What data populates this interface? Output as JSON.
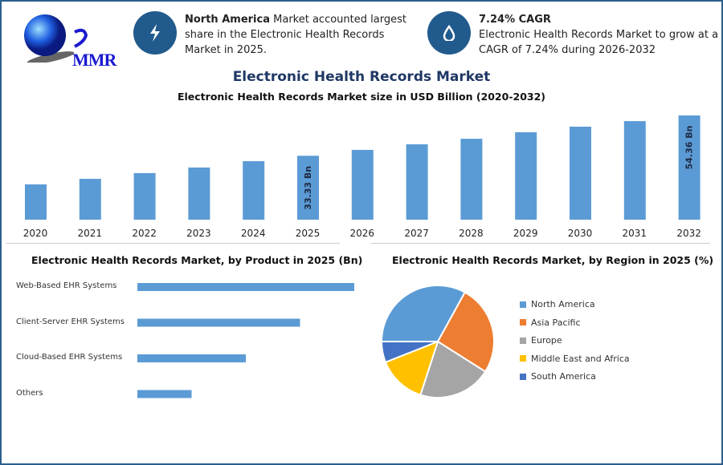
{
  "logo": {
    "text": "MMR"
  },
  "info_boxes": [
    {
      "icon": "lightning-icon",
      "bold": "North America",
      "text": " Market accounted largest share in the Electronic Health Records Market in 2025."
    },
    {
      "icon": "drop-icon",
      "bold": "7.24% CAGR",
      "text": "Electronic Health Records Market to grow at a CAGR of 7.24% during 2026-2032"
    }
  ],
  "main_title": "Electronic Health Records Market",
  "colors": {
    "bar": "#5b9bd5",
    "title": "#1f3864",
    "badge": "#215a8c"
  },
  "chart_data": [
    {
      "type": "bar",
      "title": "Electronic Health Records Market size in USD Billion (2020-2032)",
      "categories": [
        "2020",
        "2021",
        "2022",
        "2023",
        "2024",
        "2025",
        "2026",
        "2027",
        "2028",
        "2029",
        "2030",
        "2031",
        "2032"
      ],
      "values": [
        18.4,
        21.3,
        24.3,
        27.2,
        30.5,
        33.33,
        36.4,
        39.3,
        42.2,
        45.6,
        48.5,
        51.4,
        54.36
      ],
      "data_labels": {
        "5": "33.33 Bn",
        "12": "54.36 Bn"
      },
      "grid": false
    },
    {
      "type": "bar",
      "orientation": "horizontal",
      "title": "Electronic Health Records Market, by Product in 2025 (Bn)",
      "categories": [
        "Web-Based EHR Systems",
        "Client-Server EHR Systems",
        "Cloud-Based EHR Systems",
        "Others"
      ],
      "relative_values": [
        1.0,
        0.75,
        0.5,
        0.25
      ]
    },
    {
      "type": "pie",
      "title": "Electronic Health Records Market, by Region in 2025 (%)",
      "legend_position": "right",
      "slices": [
        {
          "name": "North America",
          "value": 33,
          "color": "#5b9bd5"
        },
        {
          "name": "Asia Pacific",
          "value": 26,
          "color": "#ed7d31"
        },
        {
          "name": "Europe",
          "value": 21,
          "color": "#a5a5a5"
        },
        {
          "name": "Middle East and Africa",
          "value": 14,
          "color": "#ffc000"
        },
        {
          "name": "South America",
          "value": 6,
          "color": "#4472c4"
        }
      ]
    }
  ]
}
